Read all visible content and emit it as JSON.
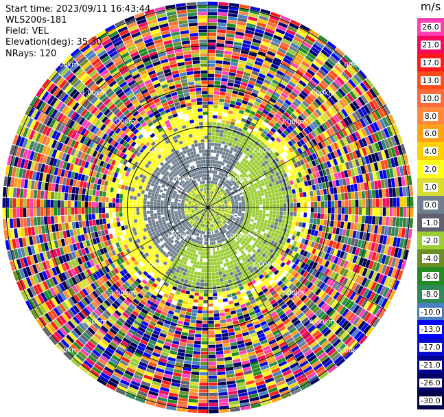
{
  "info": {
    "start_time": "Start time: 2023/09/11 16:43:44",
    "station": "WLS200s-181",
    "field": "Field: VEL",
    "elevation": "Elevation(deg): 35.30",
    "nrays": "NRays: 120"
  },
  "chart_data": {
    "type": "ppi",
    "field": "VEL",
    "units": "m/s",
    "range_ring_labels": [
      "1.00km",
      "2.00km",
      "3.00km",
      "4.00km",
      "5.00km"
    ],
    "colorbar": {
      "unit_label": "m/s",
      "levels": [
        {
          "label": "26.0",
          "color": "#ff3fb4"
        },
        {
          "label": "21.0",
          "color": "#f5095e"
        },
        {
          "label": "17.0",
          "color": "#ff1a1a"
        },
        {
          "label": "13.0",
          "color": "#ff4d1a"
        },
        {
          "label": "10.0",
          "color": "#ff6a3c"
        },
        {
          "label": "8.0",
          "color": "#ff8a3d"
        },
        {
          "label": "6.0",
          "color": "#ffa21a"
        },
        {
          "label": "4.0",
          "color": "#ffd000"
        },
        {
          "label": "2.0",
          "color": "#ffff1a"
        },
        {
          "label": "1.0",
          "color": "#d9dd33"
        },
        {
          "label": "0.0",
          "color": "#6f7f8f"
        },
        {
          "label": "-1.0",
          "color": "#606070"
        },
        {
          "label": "-2.0",
          "color": "#9acd32"
        },
        {
          "label": "-4.0",
          "color": "#6b8e23"
        },
        {
          "label": "-6.0",
          "color": "#228b22"
        },
        {
          "label": "-8.0",
          "color": "#2e8b57"
        },
        {
          "label": "-10.0",
          "color": "#4a7fc1"
        },
        {
          "label": "-13.0",
          "color": "#0000ff"
        },
        {
          "label": "-17.0",
          "color": "#0a0acd"
        },
        {
          "label": "-21.0",
          "color": "#00008b"
        },
        {
          "label": "-26.0",
          "color": "#000066"
        },
        {
          "label": "-30.0",
          "color": "#00004a"
        }
      ]
    },
    "pattern": {
      "inner_gray": "#6f7f8f",
      "inner_green": "#9acd32",
      "ring_yellow": "#ffff1a"
    }
  }
}
